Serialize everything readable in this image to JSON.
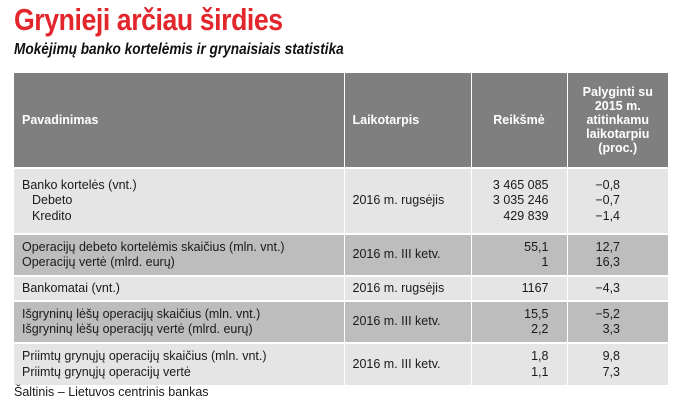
{
  "title": "Grynieji arčiau širdies",
  "subtitle": "Mokėjimų banko kortelėmis ir grynaisiais statistika",
  "table": {
    "headers": {
      "name": "Pavadinimas",
      "period": "Laikotarpis",
      "value": "Reikšmė",
      "compare": [
        "Palyginti su",
        "2015 m.",
        "atitinkamu",
        "laikotarpiu",
        "(proc.)"
      ]
    },
    "rows": [
      {
        "names": [
          "Banko kortelės (vnt.)",
          "Debeto",
          "Kredito"
        ],
        "period": "2016 m. rugsėjis",
        "values": [
          "3 465 085",
          "3 035 246",
          "429 839"
        ],
        "compare": [
          "−0,8",
          "−0,7",
          "−1,4"
        ]
      },
      {
        "names": [
          "Operacijų debeto kortelėmis skaičius (mln. vnt.)",
          "Operacijų vertė (mlrd. eurų)"
        ],
        "period": "2016 m. III ketv.",
        "values": [
          "55,1",
          "1"
        ],
        "compare": [
          "12,7",
          "16,3"
        ]
      },
      {
        "names": [
          "Bankomatai (vnt.)"
        ],
        "period": "2016 m. rugsėjis",
        "values": [
          "1167"
        ],
        "compare": [
          "−4,3"
        ]
      },
      {
        "names": [
          "Išgryninų lėšų operacijų skaičius (mln. vnt.)",
          "Išgryninų lėšų operacijų vertė (mlrd. eurų)"
        ],
        "period": "2016 m. III ketv.",
        "values": [
          "15,5",
          "2,2"
        ],
        "compare": [
          "−5,2",
          "3,3"
        ]
      },
      {
        "names": [
          "Priimtų grynųjų operacijų skaičius (mln. vnt.)",
          "Priimtų grynųjų operacijų vertė"
        ],
        "period": "2016 m. III ketv.",
        "values": [
          "1,8",
          "1,1"
        ],
        "compare": [
          "9,8",
          "7,3"
        ]
      }
    ]
  },
  "source": "Šaltinis – Lietuvos centrinis bankas",
  "colors": {
    "title": "#e3262c",
    "header_bg": "#7f7f7f",
    "row_light": "#e5e5e5",
    "row_dark": "#bdbdbd"
  }
}
